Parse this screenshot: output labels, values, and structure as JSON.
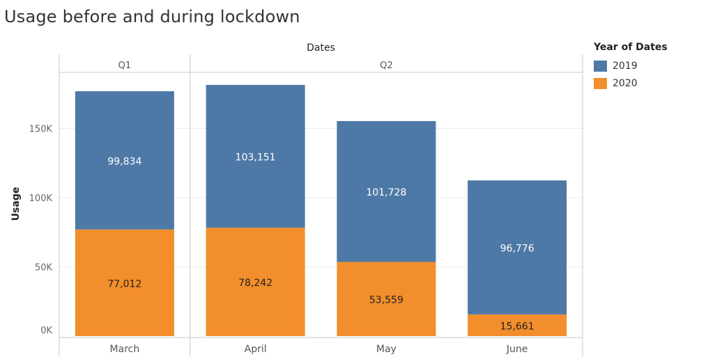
{
  "title": "Usage before and during lockdown",
  "legend": {
    "title": "Year of Dates",
    "items": [
      {
        "label": "2019",
        "color": "#4e79a7"
      },
      {
        "label": "2020",
        "color": "#f28e2b"
      }
    ]
  },
  "chart_data": {
    "type": "bar",
    "stacked": true,
    "title": "Usage before and during lockdown",
    "top_header": "Dates",
    "quarters": [
      {
        "label": "Q1",
        "months": [
          "March"
        ]
      },
      {
        "label": "Q2",
        "months": [
          "April",
          "May",
          "June"
        ]
      }
    ],
    "categories": [
      "March",
      "April",
      "May",
      "June"
    ],
    "series": [
      {
        "name": "2020",
        "color": "#f28e2b",
        "values": [
          77012,
          78242,
          53559,
          15661
        ]
      },
      {
        "name": "2019",
        "color": "#4e79a7",
        "values": [
          99834,
          103151,
          101728,
          96776
        ]
      }
    ],
    "value_labels": {
      "2020": [
        "77,012",
        "78,242",
        "53,559",
        "15,661"
      ],
      "2019": [
        "99,834",
        "103,151",
        "101,728",
        "96,776"
      ]
    },
    "ylabel": "Usage",
    "yticks": [
      0,
      50000,
      100000,
      150000
    ],
    "ytick_labels": [
      "0K",
      "50K",
      "100K",
      "150K"
    ],
    "ylim": [
      0,
      190000
    ],
    "grid": true,
    "legend_position": "right"
  }
}
